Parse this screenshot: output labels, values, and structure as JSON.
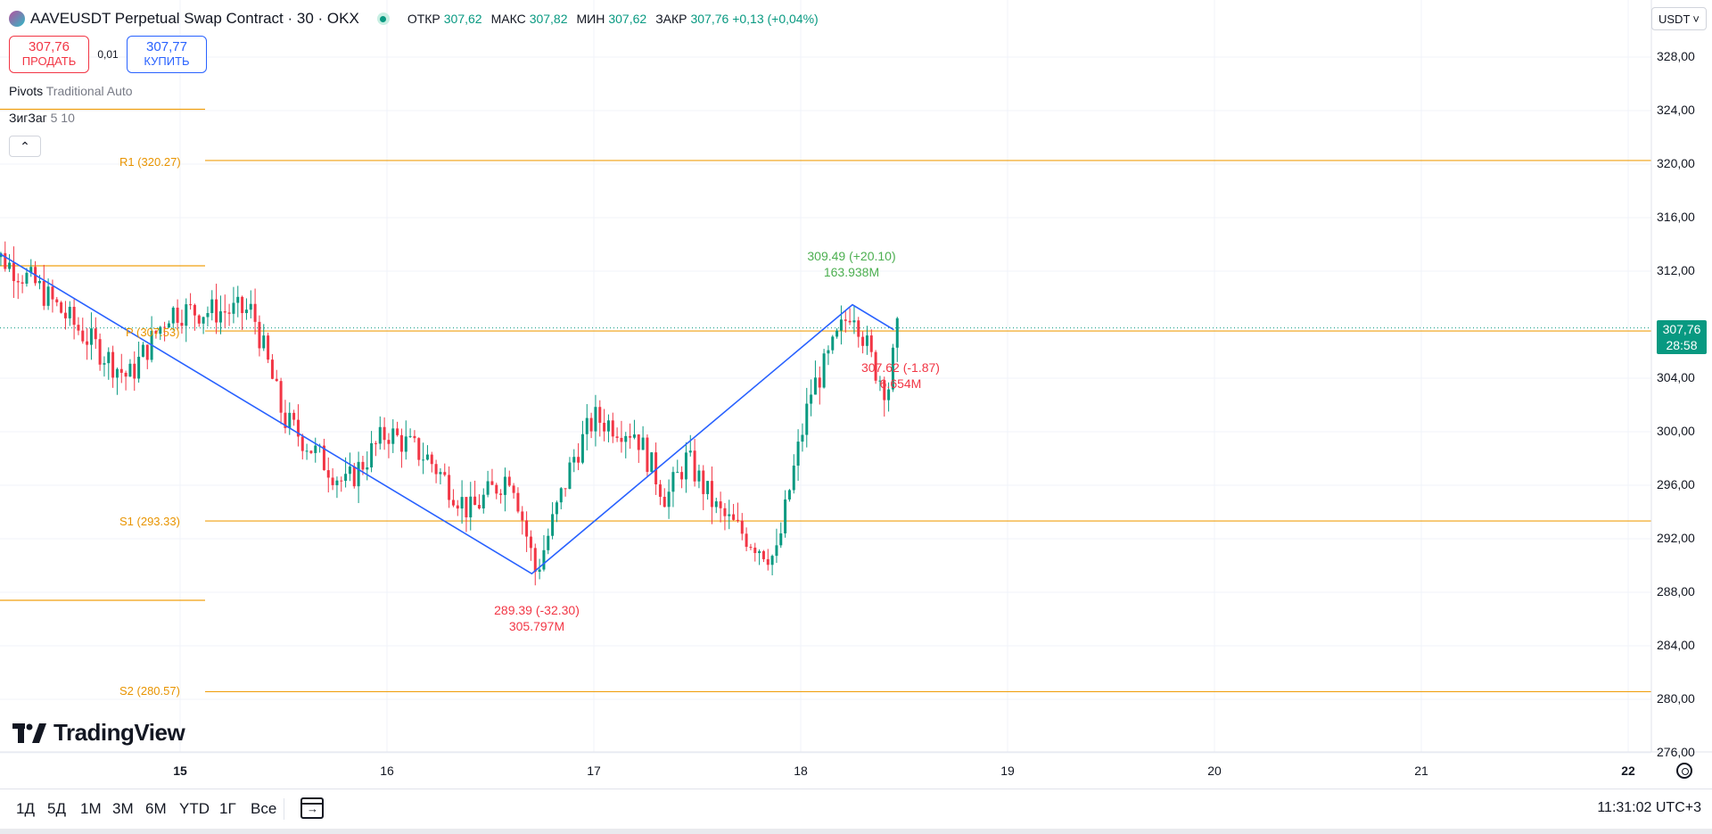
{
  "header": {
    "title": "AAVEUSDT Perpetual Swap Contract · 30 · OKX",
    "ohlc": [
      {
        "key": "ОТКР",
        "value": "307,62"
      },
      {
        "key": "МАКС",
        "value": "307,82"
      },
      {
        "key": "МИН",
        "value": "307,62"
      },
      {
        "key": "ЗАКР",
        "value": "307,76 +0,13 (+0,04%)"
      }
    ]
  },
  "trade": {
    "sell_price": "307,76",
    "sell_label": "ПРОДАТЬ",
    "spread": "0,01",
    "buy_price": "307,77",
    "buy_label": "КУПИТЬ"
  },
  "indicators": {
    "pivots_name": "Pivots",
    "pivots_params": "Traditional Auto",
    "zigzag_name": "ЗигЗаг",
    "zigzag_params": "5 10",
    "collapse_icon": "chevron-up-icon"
  },
  "pivot_labels": {
    "r1": "R1 (320.27)",
    "p": "P (307.53)",
    "s1": "S1 (293.33)",
    "s2": "S2 (280.57)"
  },
  "zigzag_labels": {
    "high_price": "309.49 (+20.10)",
    "high_vol": "163.938M",
    "low_price": "289.39 (-32.30)",
    "low_vol": "305.797M",
    "last_price": "307.62 (-1.87)",
    "last_vol": "6.654M"
  },
  "currency": "USDT",
  "current_price": {
    "price": "307,76",
    "countdown": "28:58"
  },
  "y_axis": [
    "328,00",
    "324,00",
    "320,00",
    "316,00",
    "312,00",
    "304,00",
    "300,00",
    "296,00",
    "292,00",
    "288,00",
    "284,00",
    "280,00",
    "276,00"
  ],
  "x_axis": [
    {
      "label": "15",
      "bold": true
    },
    {
      "label": "16",
      "bold": false
    },
    {
      "label": "17",
      "bold": false
    },
    {
      "label": "18",
      "bold": false
    },
    {
      "label": "19",
      "bold": false
    },
    {
      "label": "20",
      "bold": false
    },
    {
      "label": "21",
      "bold": false
    },
    {
      "label": "22",
      "bold": true
    }
  ],
  "logo": "TradingView",
  "periods": [
    "1Д",
    "5Д",
    "1М",
    "3М",
    "6М",
    "YTD",
    "1Г",
    "Все"
  ],
  "clock": "11:31:02 UTC+3",
  "colors": {
    "up": "#089981",
    "down": "#f23645",
    "pivot": "#f0a010",
    "zigzag": "#2962ff",
    "grid": "#f0f3fa"
  },
  "chart_data": {
    "type": "candlestick",
    "symbol": "AAVEUSDT",
    "interval": "30",
    "ylim": [
      276,
      330
    ],
    "pivot_levels": {
      "R1": 320.27,
      "P": 307.53,
      "S1": 293.33,
      "S2": 280.57
    },
    "zigzag_points": [
      {
        "x": "14",
        "y": 314.5
      },
      {
        "x": "16.7",
        "y": 289.39
      },
      {
        "x": "18.25",
        "y": 309.49
      },
      {
        "x": "18.45",
        "y": 307.62
      }
    ],
    "waypoints": [
      [
        14.05,
        314
      ],
      [
        14.3,
        311
      ],
      [
        14.55,
        307
      ],
      [
        14.75,
        304
      ],
      [
        14.95,
        309
      ],
      [
        15.35,
        309
      ],
      [
        15.5,
        301
      ],
      [
        15.8,
        296
      ],
      [
        16.0,
        300
      ],
      [
        16.2,
        298
      ],
      [
        16.4,
        294
      ],
      [
        16.6,
        297
      ],
      [
        16.72,
        289.4
      ],
      [
        16.9,
        298
      ],
      [
        17.0,
        301
      ],
      [
        17.2,
        300
      ],
      [
        17.35,
        295
      ],
      [
        17.45,
        298
      ],
      [
        17.6,
        294
      ],
      [
        17.75,
        292
      ],
      [
        17.88,
        290.5
      ],
      [
        17.95,
        296
      ],
      [
        18.05,
        303
      ],
      [
        18.12,
        305
      ],
      [
        18.25,
        309.5
      ],
      [
        18.35,
        305
      ],
      [
        18.42,
        303
      ],
      [
        18.47,
        307.76
      ]
    ]
  }
}
